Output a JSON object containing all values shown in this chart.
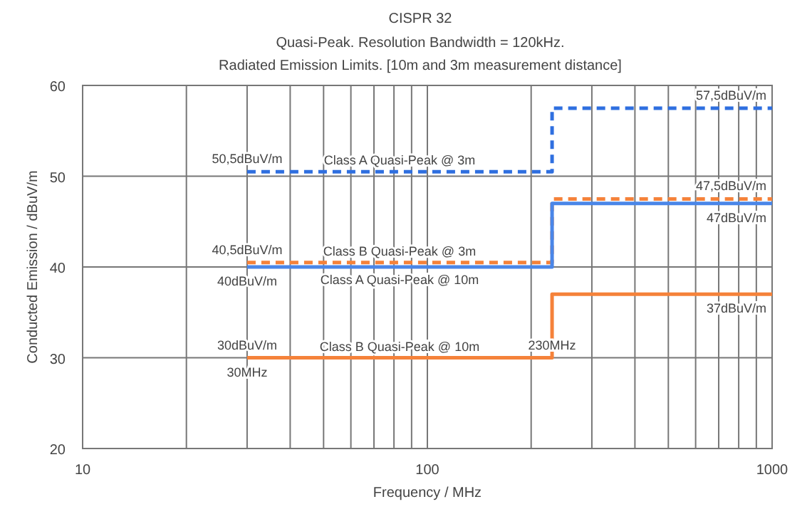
{
  "chart_data": {
    "type": "step",
    "title": "CISPR 32",
    "subtitle": "Quasi-Peak. Resolution Bandwidth = 120kHz.\nRadiated Emission Limits. [10m and 3m measurement distance]",
    "xlabel": "Frequency / MHz",
    "ylabel": "Conducted Emission / dBuV/m",
    "log": "x",
    "grid": true,
    "xlim": [
      10,
      1000
    ],
    "ylim": [
      20,
      60
    ],
    "xticks": [
      10,
      {
        "value": 20,
        "label": null
      },
      {
        "value": 30,
        "label": null
      },
      {
        "value": 40,
        "label": null
      },
      {
        "value": 50,
        "label": null
      },
      {
        "value": 60,
        "label": null
      },
      {
        "value": 70,
        "label": null
      },
      {
        "value": 80,
        "label": null
      },
      {
        "value": 90,
        "label": null
      },
      100,
      {
        "value": 200,
        "label": null
      },
      {
        "value": 300,
        "label": null
      },
      {
        "value": 400,
        "label": null
      },
      {
        "value": 500,
        "label": null
      },
      {
        "value": 600,
        "label": null
      },
      {
        "value": 700,
        "label": null
      },
      {
        "value": 800,
        "label": null
      },
      {
        "value": 900,
        "label": null
      },
      1000
    ],
    "yticks": [
      20,
      30,
      40,
      50,
      60
    ],
    "series": [
      {
        "name": "Class A Quasi-Peak @ 3m",
        "color": "#2f6fe0",
        "line_style": "dashed",
        "x": [
          30,
          230,
          1000
        ],
        "values": [
          50.5,
          57.5,
          57.5
        ]
      },
      {
        "name": "Class B Quasi-Peak @ 3m",
        "color": "#f5823a",
        "line_style": "dashed",
        "x": [
          30,
          230,
          1000
        ],
        "values": [
          40.5,
          47.5,
          47.5
        ]
      },
      {
        "name": "Class A Quasi-Peak @ 10m",
        "color": "#4a86e8",
        "line_style": "solid",
        "x": [
          30,
          230,
          1000
        ],
        "values": [
          40,
          47,
          47
        ]
      },
      {
        "name": "Class B Quasi-Peak @ 10m",
        "color": "#f5823a",
        "line_style": "solid",
        "x": [
          30,
          230,
          1000
        ],
        "values": [
          30,
          37,
          37
        ]
      }
    ],
    "annotations": [
      {
        "text": "50,5dBuV/m",
        "x": 30,
        "y": 50.5
      },
      {
        "text": "57,5dBuV/m",
        "x": 1000,
        "y": 57.5
      },
      {
        "text": "40,5dBuV/m",
        "x": 30,
        "y": 40.5
      },
      {
        "text": "40dBuV/m",
        "x": 30,
        "y": 40
      },
      {
        "text": "47,5dBuV/m",
        "x": 1000,
        "y": 47.5
      },
      {
        "text": "47dBuV/m",
        "x": 1000,
        "y": 47
      },
      {
        "text": "37dBuV/m",
        "x": 1000,
        "y": 37
      },
      {
        "text": "30dBuV/m",
        "x": 30,
        "y": 30
      },
      {
        "text": "30MHz",
        "x": 30,
        "y": 30
      },
      {
        "text": "230MHz",
        "x": 230,
        "y": 30
      }
    ]
  }
}
